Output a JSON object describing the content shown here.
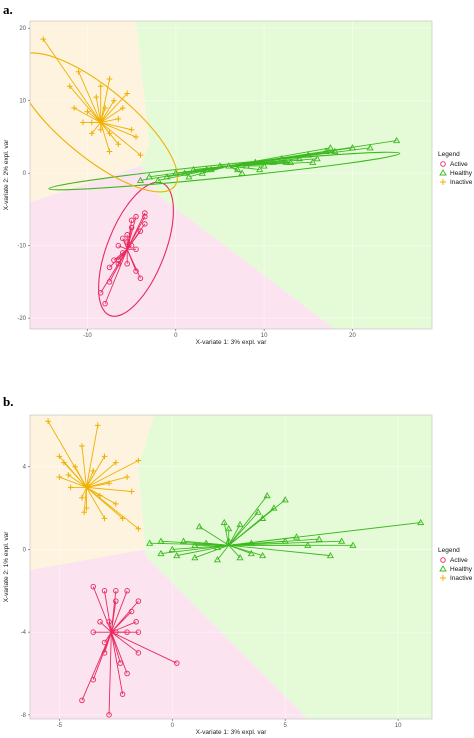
{
  "panel_labels": [
    "a.",
    "b."
  ],
  "legend": {
    "title": "Legend",
    "entries": [
      "Active",
      "Healthy",
      "Inactive"
    ]
  },
  "colors": {
    "Active": "#e8295f",
    "Healthy": "#3cb91f",
    "Inactive": "#f0b000",
    "bg_active": "#fbe3ef",
    "bg_healthy": "#e5fbd8",
    "bg_inactive": "#fdf3de",
    "grid": "#ebebeb"
  },
  "chart_data": [
    {
      "type": "scatter",
      "title": "",
      "xlabel": "X-variate 1: 3% expl. var",
      "ylabel": "X-variate 2: 2% expl. var",
      "xlim": [
        -16.5,
        29
      ],
      "ylim": [
        -21.5,
        21
      ],
      "xticks": [
        -10,
        0,
        10,
        20
      ],
      "yticks": [
        -20,
        -10,
        0,
        10,
        20
      ],
      "grid": true,
      "legend_position": "right",
      "centroids": {
        "Active": [
          -5.5,
          -10.5
        ],
        "Healthy": [
          6,
          1
        ],
        "Inactive": [
          -8.5,
          7
        ]
      },
      "ellipses": {
        "Active": {
          "cx": -4.5,
          "cy": -10.5,
          "rx": 9.6,
          "ry": 3.3,
          "angle": 72
        },
        "Healthy": {
          "cx": 5.5,
          "cy": 0.3,
          "rx": 20,
          "ry": 0.9,
          "angle": 7
        },
        "Inactive": {
          "cx": -9,
          "cy": 7,
          "rx": 12.5,
          "ry": 4.3,
          "angle": -45
        }
      },
      "regions": {
        "Inactive": [
          [
            -16.5,
            21
          ],
          [
            -4.5,
            21
          ],
          [
            -3,
            4
          ],
          [
            -4,
            1
          ],
          [
            -16.5,
            -4
          ]
        ],
        "Healthy": [
          [
            -4.5,
            21
          ],
          [
            29,
            21
          ],
          [
            29,
            -21.5
          ],
          [
            18,
            -21.5
          ],
          [
            -2,
            -3
          ],
          [
            -4,
            1
          ],
          [
            -3,
            4
          ]
        ],
        "Active": [
          [
            -16.5,
            -4
          ],
          [
            -4,
            1
          ],
          [
            -2,
            -3
          ],
          [
            18,
            -21.5
          ],
          [
            -16.5,
            -21.5
          ]
        ]
      },
      "series": [
        {
          "name": "Active",
          "marker": "circle",
          "x": [
            -8.5,
            -8,
            -7.5,
            -7.5,
            -7,
            -6.5,
            -6.5,
            -6,
            -6,
            -5.5,
            -5.5,
            -5,
            -5,
            -5,
            -4.5,
            -4.5,
            -4,
            -4,
            -3.5,
            -3.5,
            -3.5,
            -4.5,
            -6.5,
            -5.5
          ],
          "y": [
            -16.5,
            -18,
            -13,
            -15,
            -12,
            -12.5,
            -10,
            -11,
            -9,
            -8.5,
            -9.5,
            -7.5,
            -6.5,
            -10,
            -6,
            -13.5,
            -14.5,
            -8,
            -5.5,
            -7,
            -6,
            -10.5,
            -12,
            -12.5
          ]
        },
        {
          "name": "Healthy",
          "marker": "triangle",
          "x": [
            -4,
            -3,
            -2,
            -1,
            0,
            1,
            2,
            3,
            4,
            5,
            6,
            7,
            8,
            9,
            10,
            11,
            12,
            13,
            14,
            15,
            16,
            17,
            18,
            22,
            25,
            1.5,
            3.5,
            7.5,
            9.5,
            12.5,
            15.5,
            17.5,
            20
          ],
          "y": [
            -1,
            -0.5,
            -1,
            -0.5,
            0,
            0,
            0.5,
            0,
            0.5,
            1,
            1,
            0.5,
            1,
            1.5,
            1,
            1.5,
            2,
            1.5,
            2,
            2.5,
            2,
            3,
            3,
            3.5,
            4.5,
            -0.5,
            0.5,
            0,
            0.5,
            1.5,
            1.5,
            3.5,
            3.5
          ]
        },
        {
          "name": "Inactive",
          "marker": "plus",
          "x": [
            -15,
            -12,
            -11.5,
            -11,
            -10.5,
            -10,
            -9.5,
            -9,
            -8.5,
            -8.5,
            -8,
            -7.5,
            -7.5,
            -7,
            -6.5,
            -6.5,
            -6,
            -5.5,
            -5,
            -4.5,
            -4,
            -9.5,
            -7.5
          ],
          "y": [
            18.5,
            12,
            9,
            14,
            7,
            8.5,
            7,
            10.5,
            12,
            6,
            9,
            13,
            5.5,
            10,
            7.5,
            4,
            9,
            11,
            6,
            5,
            2.5,
            5.5,
            3
          ]
        }
      ]
    },
    {
      "type": "scatter",
      "title": "",
      "xlabel": "X-variate 1: 3% expl. var",
      "ylabel": "X-variate 2: 1% expl. var",
      "xlim": [
        -6.3,
        11.5
      ],
      "ylim": [
        -8.2,
        6.5
      ],
      "xticks": [
        -5,
        0,
        5,
        10
      ],
      "yticks": [
        -8,
        -4,
        0,
        4
      ],
      "grid": true,
      "legend_position": "right",
      "centroids": {
        "Active": [
          -2.7,
          -4
        ],
        "Healthy": [
          2.5,
          0.2
        ],
        "Inactive": [
          -3.8,
          3
        ]
      },
      "regions": {
        "Inactive": [
          [
            -6.3,
            6.5
          ],
          [
            -0.8,
            6.5
          ],
          [
            -1.5,
            4
          ],
          [
            -1.2,
            0
          ],
          [
            -6.3,
            -1
          ]
        ],
        "Healthy": [
          [
            -0.8,
            6.5
          ],
          [
            11.5,
            6.5
          ],
          [
            11.5,
            -8.2
          ],
          [
            6,
            -8.2
          ],
          [
            -1.2,
            -0.3
          ],
          [
            -1.2,
            0
          ],
          [
            -1.5,
            4
          ]
        ],
        "Active": [
          [
            -6.3,
            -1
          ],
          [
            -1.2,
            0
          ],
          [
            -1.2,
            -0.3
          ],
          [
            6,
            -8.2
          ],
          [
            -6.3,
            -8.2
          ]
        ]
      },
      "series": [
        {
          "name": "Active",
          "marker": "circle",
          "x": [
            -4,
            -3.5,
            -3.5,
            -3.2,
            -3,
            -3,
            -2.8,
            -2.5,
            -2.5,
            -2.3,
            -2,
            -2,
            -2,
            -1.8,
            -1.5,
            -1.5,
            -1.5,
            -2.5,
            -3,
            -2.2,
            -1.6,
            0.2,
            -2.8,
            -3.5
          ],
          "y": [
            -7.3,
            -6.3,
            -4,
            -3.5,
            -2,
            -4.5,
            -3.5,
            -2,
            -4,
            -5.5,
            -2,
            -4,
            -6,
            -3,
            -2.5,
            -4,
            -5,
            -2.5,
            -5,
            -7,
            -3.5,
            -5.5,
            -8,
            -1.8
          ]
        },
        {
          "name": "Healthy",
          "marker": "triangle",
          "x": [
            -1,
            -0.5,
            -0.5,
            0,
            0.2,
            0.5,
            1,
            1,
            1.5,
            2,
            2,
            2.5,
            2.5,
            3,
            3,
            3.5,
            3.5,
            4,
            4,
            4.5,
            5,
            5.5,
            6,
            6.5,
            7,
            7.5,
            8,
            2.3,
            3.8,
            1.2,
            5,
            11,
            4.2
          ],
          "y": [
            0.3,
            -0.2,
            0.4,
            0,
            -0.3,
            0.4,
            0.2,
            -0.4,
            0.3,
            0.1,
            -0.5,
            0.4,
            1,
            -0.4,
            1.2,
            0.3,
            -0.2,
            1.5,
            -0.3,
            2,
            0.4,
            0.6,
            0.2,
            0.5,
            -0.3,
            0.4,
            0.2,
            1.3,
            1.8,
            1.1,
            2.4,
            1.3,
            2.6
          ]
        },
        {
          "name": "Inactive",
          "marker": "plus",
          "x": [
            -5.5,
            -5,
            -5,
            -4.8,
            -4.5,
            -4.3,
            -4,
            -4,
            -3.8,
            -3.5,
            -3.3,
            -3,
            -3,
            -2.8,
            -2.5,
            -2.5,
            -2.2,
            -2,
            -1.8,
            -1.5,
            -1.5,
            -4.6,
            -3.2,
            -3.9
          ],
          "y": [
            6.2,
            4.5,
            3.5,
            4.2,
            3,
            4,
            5,
            2.5,
            2,
            3.8,
            6,
            4.5,
            1.5,
            3.2,
            4.2,
            2.2,
            1.5,
            3.5,
            2.8,
            1,
            4.3,
            3.6,
            2.6,
            1.8
          ]
        }
      ]
    }
  ]
}
